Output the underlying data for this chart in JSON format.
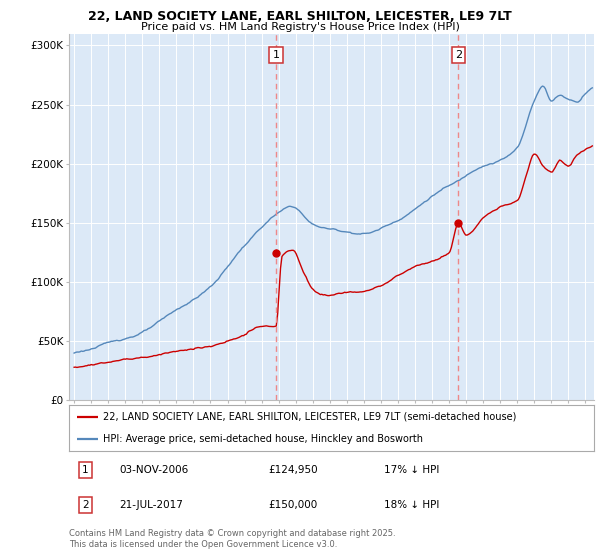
{
  "title": "22, LAND SOCIETY LANE, EARL SHILTON, LEICESTER, LE9 7LT",
  "subtitle": "Price paid vs. HM Land Registry's House Price Index (HPI)",
  "ylim": [
    0,
    310000
  ],
  "xlim_start": 1994.7,
  "xlim_end": 2025.5,
  "background_color": "#ffffff",
  "plot_bg_color": "#dce9f7",
  "grid_color": "#ffffff",
  "sale1_date": 2006.84,
  "sale1_price": 124950,
  "sale2_date": 2017.55,
  "sale2_price": 150000,
  "legend_line1": "22, LAND SOCIETY LANE, EARL SHILTON, LEICESTER, LE9 7LT (semi-detached house)",
  "legend_line2": "HPI: Average price, semi-detached house, Hinckley and Bosworth",
  "annotation1_date": "03-NOV-2006",
  "annotation1_price": "£124,950",
  "annotation1_hpi": "17% ↓ HPI",
  "annotation2_date": "21-JUL-2017",
  "annotation2_price": "£150,000",
  "annotation2_hpi": "18% ↓ HPI",
  "footer": "Contains HM Land Registry data © Crown copyright and database right 2025.\nThis data is licensed under the Open Government Licence v3.0.",
  "line_red_color": "#cc0000",
  "line_blue_color": "#5588bb",
  "vline_color": "#ee8888"
}
